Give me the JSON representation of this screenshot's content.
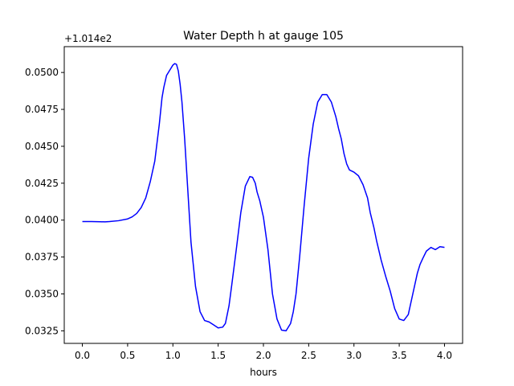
{
  "chart_data": {
    "type": "line",
    "title": "Water Depth h at gauge 105",
    "xlabel": "hours",
    "ylabel": "",
    "offset_text": "+1.014e2",
    "xlim": [
      -0.2,
      4.2
    ],
    "ylim": [
      0.03165,
      0.05175
    ],
    "x_ticks": [
      0.0,
      0.5,
      1.0,
      1.5,
      2.0,
      2.5,
      3.0,
      3.5,
      4.0
    ],
    "x_tick_labels": [
      "0.0",
      "0.5",
      "1.0",
      "1.5",
      "2.0",
      "2.5",
      "3.0",
      "3.5",
      "4.0"
    ],
    "y_ticks": [
      0.0325,
      0.035,
      0.0375,
      0.04,
      0.0425,
      0.045,
      0.0475,
      0.05
    ],
    "y_tick_labels": [
      "0.0325",
      "0.0350",
      "0.0375",
      "0.0400",
      "0.0425",
      "0.0450",
      "0.0475",
      "0.0500"
    ],
    "grid": false,
    "series": [
      {
        "color": "#0000ff",
        "x": [
          0.0,
          0.1,
          0.2,
          0.25,
          0.3,
          0.4,
          0.5,
          0.55,
          0.6,
          0.65,
          0.7,
          0.75,
          0.8,
          0.85,
          0.88,
          0.9,
          0.93,
          0.95,
          0.98,
          1.0,
          1.02,
          1.04,
          1.06,
          1.08,
          1.1,
          1.13,
          1.16,
          1.2,
          1.25,
          1.3,
          1.35,
          1.4,
          1.45,
          1.5,
          1.55,
          1.58,
          1.62,
          1.65,
          1.7,
          1.75,
          1.8,
          1.85,
          1.88,
          1.91,
          1.93,
          1.96,
          2.0,
          2.05,
          2.1,
          2.15,
          2.2,
          2.25,
          2.3,
          2.33,
          2.36,
          2.4,
          2.45,
          2.5,
          2.55,
          2.6,
          2.65,
          2.7,
          2.75,
          2.8,
          2.83,
          2.86,
          2.89,
          2.92,
          2.95,
          3.0,
          3.05,
          3.1,
          3.15,
          3.18,
          3.22,
          3.25,
          3.3,
          3.35,
          3.4,
          3.45,
          3.5,
          3.55,
          3.6,
          3.65,
          3.7,
          3.73,
          3.76,
          3.8,
          3.85,
          3.9,
          3.95,
          4.0
        ],
        "y": [
          0.0399,
          0.0399,
          0.03989,
          0.03988,
          0.0399,
          0.03996,
          0.04008,
          0.04022,
          0.04045,
          0.04085,
          0.0415,
          0.0426,
          0.044,
          0.0465,
          0.0483,
          0.049,
          0.0498,
          0.05,
          0.0503,
          0.0505,
          0.0506,
          0.05055,
          0.0501,
          0.0492,
          0.048,
          0.0455,
          0.0425,
          0.0385,
          0.0355,
          0.0338,
          0.0332,
          0.0331,
          0.0329,
          0.0327,
          0.03275,
          0.033,
          0.0342,
          0.0356,
          0.038,
          0.0405,
          0.0423,
          0.04295,
          0.0429,
          0.0425,
          0.0419,
          0.0413,
          0.0402,
          0.038,
          0.035,
          0.0333,
          0.03255,
          0.0325,
          0.033,
          0.0338,
          0.035,
          0.0375,
          0.041,
          0.0442,
          0.0465,
          0.048,
          0.0485,
          0.0485,
          0.048,
          0.047,
          0.0462,
          0.0455,
          0.0445,
          0.0438,
          0.0434,
          0.04325,
          0.043,
          0.0424,
          0.0415,
          0.0405,
          0.0395,
          0.0386,
          0.0373,
          0.0362,
          0.0352,
          0.034,
          0.0333,
          0.0332,
          0.0336,
          0.035,
          0.0364,
          0.037,
          0.0374,
          0.0379,
          0.03815,
          0.038,
          0.0382,
          0.03815
        ]
      }
    ]
  }
}
